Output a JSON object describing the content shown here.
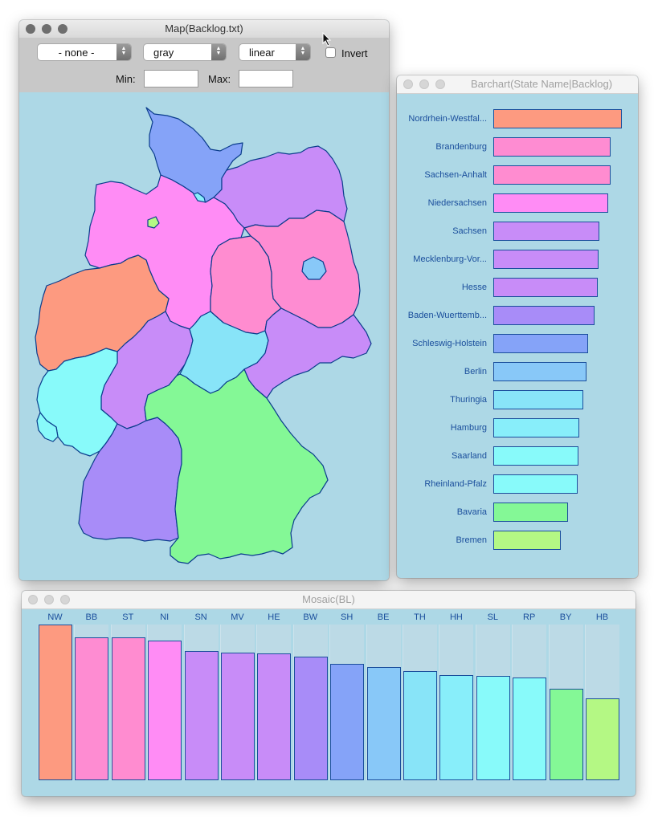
{
  "map_window": {
    "title": "Map(Backlog.txt)",
    "dropdowns": [
      {
        "id": "classification",
        "value": "- none -"
      },
      {
        "id": "palette",
        "value": "gray"
      },
      {
        "id": "scale",
        "value": "linear"
      }
    ],
    "invert_label": "Invert",
    "invert_checked": false,
    "min_label": "Min:",
    "max_label": "Max:",
    "min_value": "",
    "max_value": "",
    "state_colors": {
      "SH": "#85a3f8",
      "HH": "#88eefa",
      "MV": "#c88cf8",
      "NI": "#ff8cf5",
      "HB": "#b4f884",
      "BB": "#fe8cd2",
      "BE": "#88c8f8",
      "ST": "#ff8cd0",
      "NW": "#fd9a80",
      "HE": "#c88cf8",
      "TH": "#88e4f8",
      "SN": "#c88cf8",
      "RP": "#88fafa",
      "SL": "#88fafa",
      "BW": "#a88cf8",
      "BY": "#84f896"
    }
  },
  "barchart_window": {
    "title": "Barchart(State Name|Backlog)",
    "bars": [
      {
        "label": "Nordrhein-Westfal...",
        "value": 160,
        "color": "#fd9a80"
      },
      {
        "label": "Brandenburg",
        "value": 146,
        "color": "#fe8cd2"
      },
      {
        "label": "Sachsen-Anhalt",
        "value": 146,
        "color": "#ff8cd0"
      },
      {
        "label": "Niedersachsen",
        "value": 143,
        "color": "#ff8cf5"
      },
      {
        "label": "Sachsen",
        "value": 132,
        "color": "#c88cf8"
      },
      {
        "label": "Mecklenburg-Vor...",
        "value": 131,
        "color": "#c88cf8"
      },
      {
        "label": "Hesse",
        "value": 130,
        "color": "#c88cf8"
      },
      {
        "label": "Baden-Wuerttemb...",
        "value": 126,
        "color": "#a88cf8"
      },
      {
        "label": "Schleswig-Holstein",
        "value": 118,
        "color": "#85a3f8"
      },
      {
        "label": "Berlin",
        "value": 116,
        "color": "#88c8f8"
      },
      {
        "label": "Thuringia",
        "value": 112,
        "color": "#88e4f8"
      },
      {
        "label": "Hamburg",
        "value": 107,
        "color": "#88eefa"
      },
      {
        "label": "Saarland",
        "value": 106,
        "color": "#88fafa"
      },
      {
        "label": "Rheinland-Pfalz",
        "value": 105,
        "color": "#88fafa"
      },
      {
        "label": "Bavaria",
        "value": 93,
        "color": "#84f896"
      },
      {
        "label": "Bremen",
        "value": 84,
        "color": "#b4f884"
      }
    ]
  },
  "mosaic_window": {
    "title": "Mosaic(BL)",
    "columns": [
      {
        "label": "NW",
        "fill": 1.0,
        "color": "#fd9a80"
      },
      {
        "label": "BB",
        "fill": 0.915,
        "color": "#fe8cd2"
      },
      {
        "label": "ST",
        "fill": 0.915,
        "color": "#ff8cd0"
      },
      {
        "label": "NI",
        "fill": 0.896,
        "color": "#ff8cf5"
      },
      {
        "label": "SN",
        "fill": 0.832,
        "color": "#c88cf8"
      },
      {
        "label": "MV",
        "fill": 0.822,
        "color": "#c88cf8"
      },
      {
        "label": "HE",
        "fill": 0.816,
        "color": "#c88cf8"
      },
      {
        "label": "BW",
        "fill": 0.793,
        "color": "#a88cf8"
      },
      {
        "label": "SH",
        "fill": 0.746,
        "color": "#85a3f8"
      },
      {
        "label": "BE",
        "fill": 0.728,
        "color": "#88c8f8"
      },
      {
        "label": "TH",
        "fill": 0.702,
        "color": "#88e4f8"
      },
      {
        "label": "HH",
        "fill": 0.676,
        "color": "#88eefa"
      },
      {
        "label": "SL",
        "fill": 0.671,
        "color": "#88fafa"
      },
      {
        "label": "RP",
        "fill": 0.661,
        "color": "#88fafa"
      },
      {
        "label": "BY",
        "fill": 0.588,
        "color": "#84f896"
      },
      {
        "label": "HB",
        "fill": 0.527,
        "color": "#b4f884"
      }
    ]
  }
}
